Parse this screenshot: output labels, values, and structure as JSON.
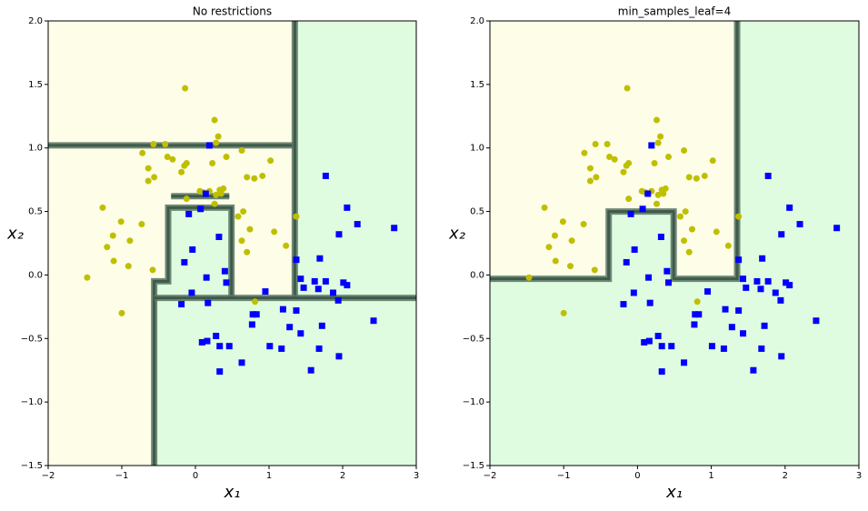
{
  "chart_data": [
    {
      "type": "scatter",
      "title": "No restrictions",
      "xlabel": "x₁",
      "ylabel": "x₂",
      "xlim": [
        -2,
        3
      ],
      "ylim": [
        -1.5,
        2
      ],
      "xticks": [
        {
          "value": -2,
          "label": "−2"
        },
        {
          "value": -1,
          "label": "−1"
        },
        0,
        1,
        2,
        3
      ],
      "yticks": [
        {
          "value": -1.5,
          "label": "−1.5"
        },
        {
          "value": -1,
          "label": "−1.0"
        },
        {
          "value": -0.5,
          "label": "−0.5"
        },
        {
          "value": 0,
          "label": "0.0"
        },
        {
          "value": 0.5,
          "label": "0.5"
        },
        {
          "value": 1,
          "label": "1.0"
        },
        {
          "value": 1.5,
          "label": "1.5"
        },
        {
          "value": 2,
          "label": "2.0"
        }
      ],
      "background": "#fefde8",
      "boundary_color": "#587563",
      "regions": [
        {
          "color": "#e0fce0",
          "x": [
            1.35,
            3,
            3,
            -0.56,
            -0.56,
            -0.37,
            -0.37,
            0.49,
            0.49,
            1.35
          ],
          "y": [
            2,
            2,
            -1.5,
            -1.5,
            -0.05,
            -0.05,
            0.53,
            0.53,
            -0.18,
            -0.18
          ]
        },
        {
          "color": "#e0fce0",
          "x": [
            -0.33,
            0.46,
            0.46,
            -0.33
          ],
          "y": [
            0.6,
            0.6,
            0.64,
            0.64
          ]
        }
      ],
      "boundaries": [
        {
          "x": [
            -2,
            1.35
          ],
          "y": [
            1.02,
            1.02
          ]
        },
        {
          "x": [
            1.35,
            1.35
          ],
          "y": [
            2,
            -0.18
          ]
        },
        {
          "x": [
            -0.56,
            -0.56,
            -0.37,
            -0.37,
            0.49,
            0.49
          ],
          "y": [
            -1.5,
            -0.05,
            -0.05,
            0.53,
            0.53,
            -0.18
          ]
        },
        {
          "x": [
            -0.56,
            3
          ],
          "y": [
            -0.18,
            -0.18
          ]
        },
        {
          "x": [
            -0.33,
            0.46
          ],
          "y": [
            0.62,
            0.62
          ]
        }
      ],
      "series": [
        {
          "marker": "circle",
          "color": "#bfbf00",
          "x": [
            -1.47,
            -1.26,
            -1.2,
            -1.12,
            -1.11,
            -1.01,
            -1.0,
            -0.91,
            -0.89,
            -0.73,
            -0.72,
            -0.64,
            -0.64,
            -0.58,
            -0.57,
            -0.56,
            -0.41,
            -0.38,
            -0.31,
            -0.19,
            -0.15,
            -0.14,
            -0.12,
            -0.12,
            0.06,
            0.11,
            0.19,
            0.23,
            0.26,
            0.26,
            0.28,
            0.28,
            0.31,
            0.33,
            0.35,
            0.38,
            0.42,
            0.58,
            0.63,
            0.63,
            0.65,
            0.7,
            0.7,
            0.74,
            0.8,
            0.81,
            0.91,
            1.02,
            1.07,
            1.23,
            1.37
          ],
          "values": [
            -0.02,
            0.53,
            0.22,
            0.31,
            0.11,
            0.42,
            -0.3,
            0.07,
            0.27,
            0.4,
            0.96,
            0.84,
            0.74,
            0.04,
            1.03,
            0.77,
            1.03,
            0.93,
            0.91,
            0.81,
            0.86,
            1.47,
            0.88,
            0.6,
            0.66,
            0.65,
            0.66,
            0.88,
            1.22,
            0.56,
            1.04,
            0.63,
            1.09,
            0.67,
            0.64,
            0.68,
            0.93,
            0.46,
            0.98,
            0.27,
            0.5,
            0.77,
            0.18,
            0.36,
            0.76,
            -0.21,
            0.78,
            0.9,
            0.34,
            0.23,
            0.46
          ]
        },
        {
          "marker": "square",
          "color": "#0000ff",
          "x": [
            0.19,
            0.14,
            0.07,
            -0.09,
            0.32,
            -0.04,
            -0.15,
            0.4,
            0.15,
            0.42,
            0.95,
            -0.05,
            0.17,
            -0.19,
            1.37,
            1.43,
            1.77,
            2.06,
            2.2,
            1.95,
            2.7,
            1.47,
            1.62,
            1.69,
            1.67,
            1.77,
            1.87,
            2.01,
            2.06,
            1.94,
            0.78,
            0.83,
            0.77,
            1.19,
            1.37,
            1.28,
            1.72,
            1.43,
            0.28,
            0.09,
            0.16,
            0.33,
            0.46,
            1.01,
            1.17,
            1.68,
            1.95,
            0.63,
            0.33,
            1.57,
            2.42
          ],
          "values": [
            1.02,
            0.64,
            0.52,
            0.48,
            0.3,
            0.2,
            0.1,
            0.03,
            -0.02,
            -0.06,
            -0.13,
            -0.14,
            -0.22,
            -0.23,
            0.12,
            -0.03,
            0.78,
            0.53,
            0.4,
            0.32,
            0.37,
            -0.1,
            -0.05,
            0.13,
            -0.11,
            -0.05,
            -0.14,
            -0.06,
            -0.08,
            -0.2,
            -0.31,
            -0.31,
            -0.39,
            -0.27,
            -0.28,
            -0.41,
            -0.4,
            -0.46,
            -0.48,
            -0.53,
            -0.52,
            -0.56,
            -0.56,
            -0.56,
            -0.58,
            -0.58,
            -0.64,
            -0.69,
            -0.76,
            -0.75,
            -0.36
          ]
        }
      ]
    },
    {
      "type": "scatter",
      "title": "min_samples_leaf=4",
      "xlabel": "x₁",
      "ylabel": "x₂",
      "xlim": [
        -2,
        3
      ],
      "ylim": [
        -1.5,
        2
      ],
      "xticks": [
        {
          "value": -2,
          "label": "−2"
        },
        {
          "value": -1,
          "label": "−1"
        },
        0,
        1,
        2,
        3
      ],
      "yticks": [
        {
          "value": -1.5,
          "label": "−1.5"
        },
        {
          "value": -1,
          "label": "−1.0"
        },
        {
          "value": -0.5,
          "label": "−0.5"
        },
        {
          "value": 0,
          "label": "0.0"
        },
        {
          "value": 0.5,
          "label": "0.5"
        },
        {
          "value": 1,
          "label": "1.0"
        },
        {
          "value": 1.5,
          "label": "1.5"
        },
        {
          "value": 2,
          "label": "2.0"
        }
      ],
      "background": "#fefde8",
      "boundary_color": "#587563",
      "regions": [
        {
          "color": "#e0fce0",
          "x": [
            1.35,
            3,
            3,
            -2,
            -2,
            -0.39,
            -0.39,
            0.49,
            0.49,
            1.35
          ],
          "y": [
            2,
            2,
            -1.5,
            -1.5,
            -0.03,
            -0.03,
            0.5,
            0.5,
            -0.03,
            -0.03
          ]
        }
      ],
      "boundaries": [
        {
          "x": [
            -2,
            -0.39,
            -0.39,
            0.49,
            0.49,
            1.35,
            1.35
          ],
          "y": [
            -0.03,
            -0.03,
            0.5,
            0.5,
            -0.03,
            -0.03,
            2
          ]
        }
      ],
      "series": [
        {
          "marker": "circle",
          "color": "#bfbf00",
          "x": [
            -1.47,
            -1.26,
            -1.2,
            -1.12,
            -1.11,
            -1.01,
            -1.0,
            -0.91,
            -0.89,
            -0.73,
            -0.72,
            -0.64,
            -0.64,
            -0.58,
            -0.57,
            -0.56,
            -0.41,
            -0.38,
            -0.31,
            -0.19,
            -0.15,
            -0.14,
            -0.12,
            -0.12,
            0.06,
            0.11,
            0.19,
            0.23,
            0.26,
            0.26,
            0.28,
            0.28,
            0.31,
            0.33,
            0.35,
            0.38,
            0.42,
            0.58,
            0.63,
            0.63,
            0.65,
            0.7,
            0.7,
            0.74,
            0.8,
            0.81,
            0.91,
            1.02,
            1.07,
            1.23,
            1.37
          ],
          "values": [
            -0.02,
            0.53,
            0.22,
            0.31,
            0.11,
            0.42,
            -0.3,
            0.07,
            0.27,
            0.4,
            0.96,
            0.84,
            0.74,
            0.04,
            1.03,
            0.77,
            1.03,
            0.93,
            0.91,
            0.81,
            0.86,
            1.47,
            0.88,
            0.6,
            0.66,
            0.65,
            0.66,
            0.88,
            1.22,
            0.56,
            1.04,
            0.63,
            1.09,
            0.67,
            0.64,
            0.68,
            0.93,
            0.46,
            0.98,
            0.27,
            0.5,
            0.77,
            0.18,
            0.36,
            0.76,
            -0.21,
            0.78,
            0.9,
            0.34,
            0.23,
            0.46
          ]
        },
        {
          "marker": "square",
          "color": "#0000ff",
          "x": [
            0.19,
            0.14,
            0.07,
            -0.09,
            0.32,
            -0.04,
            -0.15,
            0.4,
            0.15,
            0.42,
            0.95,
            -0.05,
            0.17,
            -0.19,
            1.37,
            1.43,
            1.77,
            2.06,
            2.2,
            1.95,
            2.7,
            1.47,
            1.62,
            1.69,
            1.67,
            1.77,
            1.87,
            2.01,
            2.06,
            1.94,
            0.78,
            0.83,
            0.77,
            1.19,
            1.37,
            1.28,
            1.72,
            1.43,
            0.28,
            0.09,
            0.16,
            0.33,
            0.46,
            1.01,
            1.17,
            1.68,
            1.95,
            0.63,
            0.33,
            1.57,
            2.42
          ],
          "values": [
            1.02,
            0.64,
            0.52,
            0.48,
            0.3,
            0.2,
            0.1,
            0.03,
            -0.02,
            -0.06,
            -0.13,
            -0.14,
            -0.22,
            -0.23,
            0.12,
            -0.03,
            0.78,
            0.53,
            0.4,
            0.32,
            0.37,
            -0.1,
            -0.05,
            0.13,
            -0.11,
            -0.05,
            -0.14,
            -0.06,
            -0.08,
            -0.2,
            -0.31,
            -0.31,
            -0.39,
            -0.27,
            -0.28,
            -0.41,
            -0.4,
            -0.46,
            -0.48,
            -0.53,
            -0.52,
            -0.56,
            -0.56,
            -0.56,
            -0.58,
            -0.58,
            -0.64,
            -0.69,
            -0.76,
            -0.75,
            -0.36
          ]
        }
      ]
    }
  ]
}
